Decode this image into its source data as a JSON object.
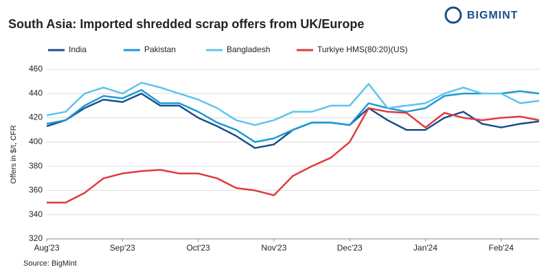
{
  "brand": "BIGMINT",
  "chart_data": {
    "type": "line",
    "title": "South Asia: Imported shredded scrap offers from UK/Europe",
    "y_label": "Offers in $/t, CFR",
    "source": "Source: BigMint",
    "categories": [
      "Aug'23",
      null,
      null,
      null,
      "Sep'23",
      null,
      null,
      null,
      "Oct'23",
      null,
      null,
      null,
      "Nov'23",
      null,
      null,
      null,
      "Dec'23",
      null,
      null,
      null,
      "Jan'24",
      null,
      null,
      null,
      "Feb'24",
      null,
      null
    ],
    "series": [
      {
        "name": "India",
        "color": "#1a4e8c",
        "values": [
          413,
          418,
          428,
          435,
          433,
          440,
          430,
          430,
          420,
          413,
          405,
          395,
          398,
          410,
          416,
          416,
          414,
          428,
          418,
          410,
          410,
          420,
          425,
          415,
          412,
          415,
          417
        ]
      },
      {
        "name": "Pakistan",
        "color": "#1a9ad6",
        "values": [
          415,
          418,
          430,
          438,
          436,
          443,
          432,
          432,
          425,
          416,
          410,
          400,
          403,
          410,
          416,
          416,
          414,
          432,
          428,
          425,
          428,
          438,
          440,
          440,
          440,
          442,
          440
        ]
      },
      {
        "name": "Bangladesh",
        "color": "#5bc4ec",
        "values": [
          422,
          425,
          440,
          445,
          440,
          449,
          445,
          440,
          435,
          428,
          418,
          414,
          418,
          425,
          425,
          430,
          430,
          448,
          428,
          430,
          432,
          440,
          445,
          440,
          440,
          432,
          434
        ]
      },
      {
        "name": "Turkiye HMS(80:20)(US)",
        "color": "#e0393e",
        "values": [
          350,
          350,
          358,
          370,
          374,
          376,
          377,
          374,
          374,
          370,
          362,
          360,
          356,
          372,
          380,
          387,
          400,
          428,
          425,
          424,
          412,
          424,
          420,
          418,
          420,
          421,
          418
        ]
      }
    ],
    "ylim": [
      320,
      460
    ],
    "yticks": [
      320,
      340,
      360,
      380,
      400,
      420,
      440,
      460
    ],
    "grid": true
  }
}
